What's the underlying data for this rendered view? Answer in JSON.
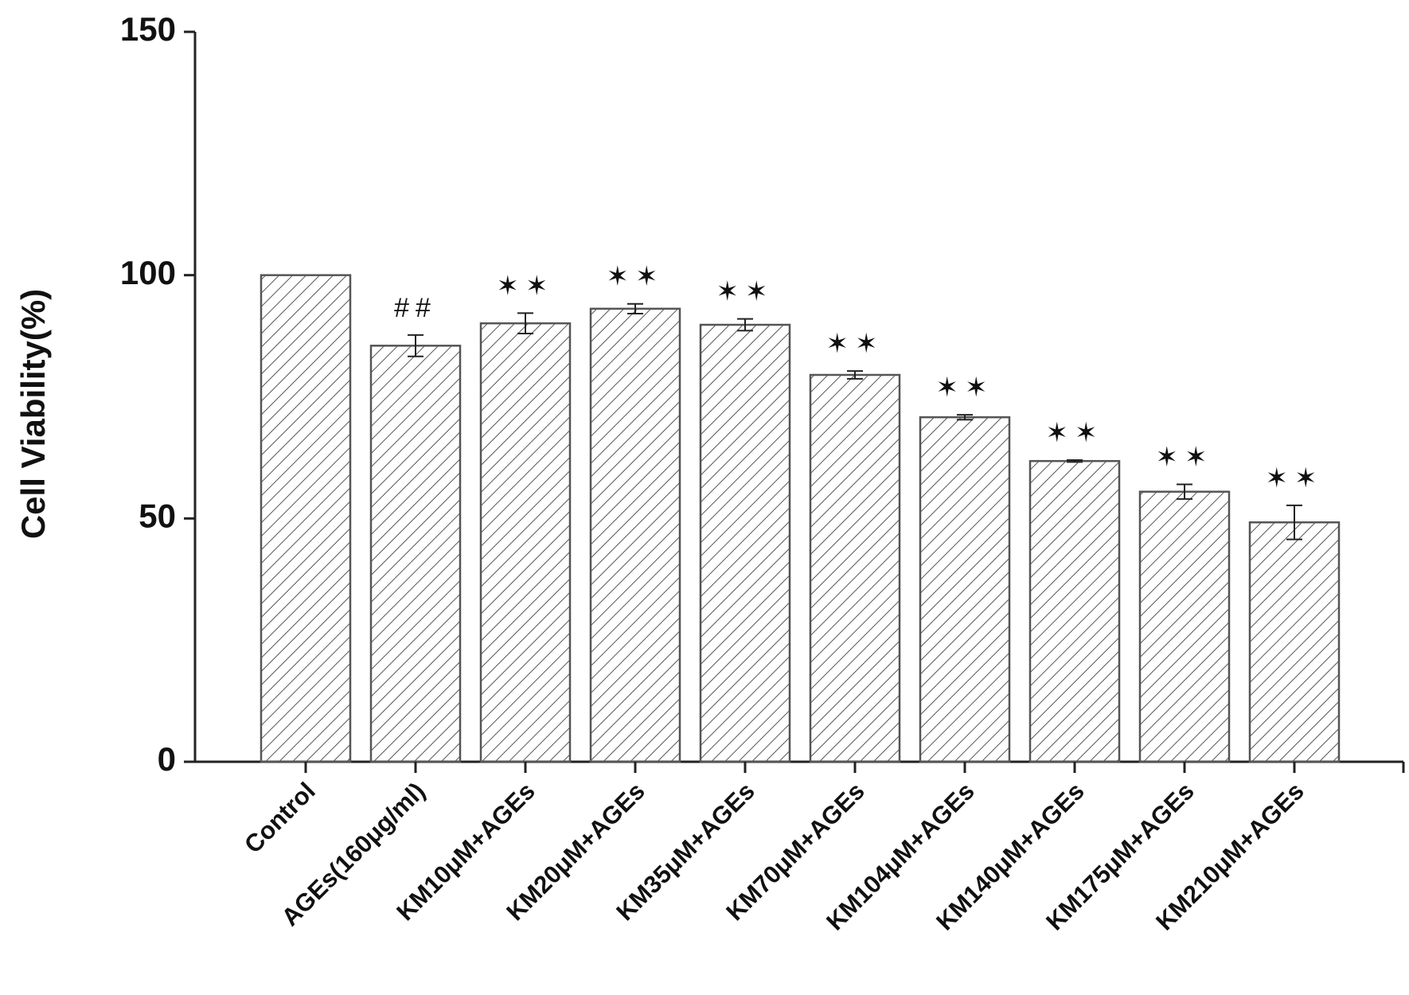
{
  "chart_data": {
    "type": "bar",
    "y_label": "Cell Viability(%)",
    "categories": [
      "Control",
      "AGEs(160μg/ml)",
      "KM10μM+AGEs",
      "KM20μM+AGEs",
      "KM35μM+AGEs",
      "KM70μM+AGEs",
      "KM104μM+AGEs",
      "KM140μM+AGEs",
      "KM175μM+AGEs",
      "KM210μM+AGEs"
    ],
    "values": [
      100,
      85.5,
      90.1,
      93.1,
      89.8,
      79.5,
      70.8,
      61.8,
      55.5,
      49.2
    ],
    "errors": [
      0,
      2.2,
      2.1,
      1,
      1.2,
      0.8,
      0.5,
      0.2,
      1.5,
      3.5
    ],
    "annotations": [
      null,
      "##",
      "✶✶",
      "✶✶",
      "✶✶",
      "✶✶",
      "✶✶",
      "✶✶",
      "✶✶",
      "✶✶"
    ],
    "color": "#555555",
    "ylim": [
      0,
      150
    ],
    "yticks": [
      0,
      50,
      100,
      150
    ]
  }
}
